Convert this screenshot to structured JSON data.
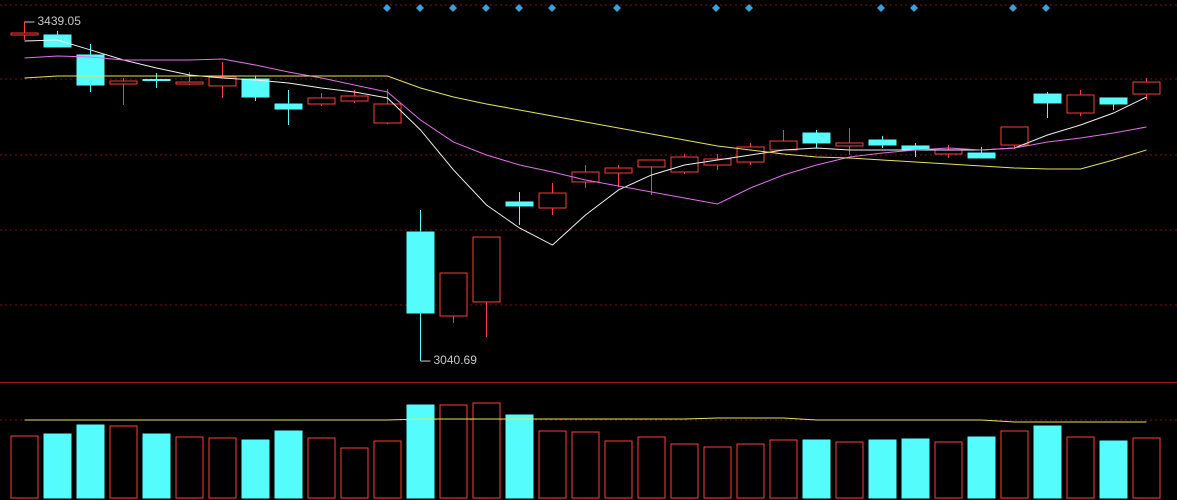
{
  "chart_data": {
    "type": "candlestick",
    "up_color": "#ff3c3c",
    "down_color": "#54fcfc",
    "ylim": [
      3018.4,
      3464.9
    ],
    "open": [
      3423.8,
      3423.8,
      3400.3,
      3366.2,
      3371.5,
      3366.2,
      3363.9,
      3372.1,
      3342.7,
      3342.7,
      3346.2,
      3320.4,
      3192.3,
      3093.6,
      3110.1,
      3227.6,
      3220.5,
      3251.1,
      3261.6,
      3268.7,
      3262.8,
      3271.0,
      3274.5,
      3288.7,
      3308.6,
      3293.4,
      3300.4,
      3293.4,
      3284.0,
      3285.1,
      3294.5,
      3354.4,
      3332.1,
      3349.8,
      3354.4
    ],
    "high": [
      3439.05,
      3428.5,
      3413.2,
      3373.3,
      3379.1,
      3380.3,
      3392.0,
      3375.6,
      3359.2,
      3355.6,
      3359.2,
      3360.3,
      3218.2,
      3144.1,
      3186.4,
      3239.3,
      3249.9,
      3271.0,
      3271.0,
      3276.9,
      3284.0,
      3284.0,
      3296.9,
      3312.2,
      3312.2,
      3314.5,
      3305.1,
      3296.9,
      3294.5,
      3292.2,
      3315.7,
      3356.8,
      3359.2,
      3349.8,
      3373.3
    ],
    "low": [
      3417.9,
      3409.7,
      3356.8,
      3341.5,
      3361.5,
      3365.0,
      3349.8,
      3346.2,
      3318.0,
      3340.3,
      3343.9,
      3319.2,
      3040.69,
      3085.4,
      3068.9,
      3200.5,
      3212.3,
      3244.0,
      3245.2,
      3235.8,
      3260.5,
      3265.1,
      3271.0,
      3288.7,
      3291.0,
      3282.8,
      3291.0,
      3280.4,
      3279.3,
      3279.3,
      3289.8,
      3326.3,
      3328.6,
      3335.7,
      3347.4
    ],
    "close": [
      3426.1,
      3409.7,
      3365.0,
      3369.7,
      3370.3,
      3368.5,
      3374.4,
      3350.9,
      3336.8,
      3349.8,
      3352.1,
      3342.7,
      3097.1,
      3144.1,
      3186.4,
      3222.9,
      3238.1,
      3262.8,
      3267.5,
      3276.9,
      3280.4,
      3278.1,
      3292.2,
      3299.2,
      3296.9,
      3296.9,
      3294.5,
      3288.7,
      3288.7,
      3279.3,
      3315.7,
      3343.9,
      3353.3,
      3342.7,
      3368.5
    ],
    "high_label": "3439.05",
    "low_label": "3040.69",
    "lines": [
      {
        "color": "#f0f0f0",
        "values": [
          3416.7,
          3417.9,
          3406.2,
          3394.4,
          3385.0,
          3376.8,
          3373.3,
          3370.9,
          3367.4,
          3361.5,
          3356.8,
          3349.8,
          3312.2,
          3265.2,
          3224.0,
          3197.0,
          3177.0,
          3212.3,
          3241.7,
          3259.3,
          3271.0,
          3276.9,
          3282.8,
          3288.7,
          3291.0,
          3288.7,
          3288.7,
          3288.7,
          3288.7,
          3288.7,
          3291.0,
          3306.3,
          3318.0,
          3332.1,
          3350.9
        ]
      },
      {
        "color": "#e070e8",
        "values": [
          3396.8,
          3399.1,
          3397.9,
          3394.4,
          3394.4,
          3394.4,
          3395.6,
          3388.5,
          3380.3,
          3373.3,
          3365.0,
          3356.8,
          3323.9,
          3298.0,
          3282.8,
          3271.0,
          3262.8,
          3253.4,
          3246.4,
          3239.3,
          3232.3,
          3225.2,
          3244.0,
          3259.3,
          3271.0,
          3280.4,
          3285.1,
          3288.7,
          3291.0,
          3288.7,
          3291.0,
          3298.0,
          3302.8,
          3308.6,
          3315.7
        ]
      },
      {
        "color": "#e8e060",
        "values": [
          3373.3,
          3375.6,
          3375.6,
          3375.6,
          3375.6,
          3375.6,
          3375.6,
          3375.6,
          3375.6,
          3375.6,
          3375.6,
          3375.6,
          3361.5,
          3350.9,
          3342.7,
          3335.7,
          3328.6,
          3321.6,
          3314.5,
          3307.5,
          3300.4,
          3293.4,
          3288.7,
          3284.0,
          3280.4,
          3279.3,
          3276.9,
          3274.5,
          3272.2,
          3269.8,
          3267.5,
          3266.3,
          3266.3,
          3276.9,
          3288.7
        ]
      }
    ],
    "volume": {
      "ylim": [
        0,
        115
      ],
      "values": [
        62,
        64,
        73,
        72,
        64,
        61,
        60,
        58,
        67,
        60,
        50,
        57,
        93,
        93,
        95,
        83,
        67,
        66,
        57,
        61,
        54,
        51,
        54,
        58,
        58,
        56,
        58,
        59,
        56,
        61,
        67,
        72,
        61,
        57,
        60
      ],
      "ma": {
        "color": "#e8e060",
        "values": [
          78,
          78,
          78,
          78,
          78,
          78,
          78,
          78,
          78,
          78,
          78,
          78,
          79,
          79,
          79,
          79,
          79,
          79,
          79,
          79,
          79,
          80,
          80,
          80,
          78,
          78,
          78,
          78,
          78,
          78,
          76,
          76,
          76,
          76,
          76
        ]
      }
    }
  }
}
